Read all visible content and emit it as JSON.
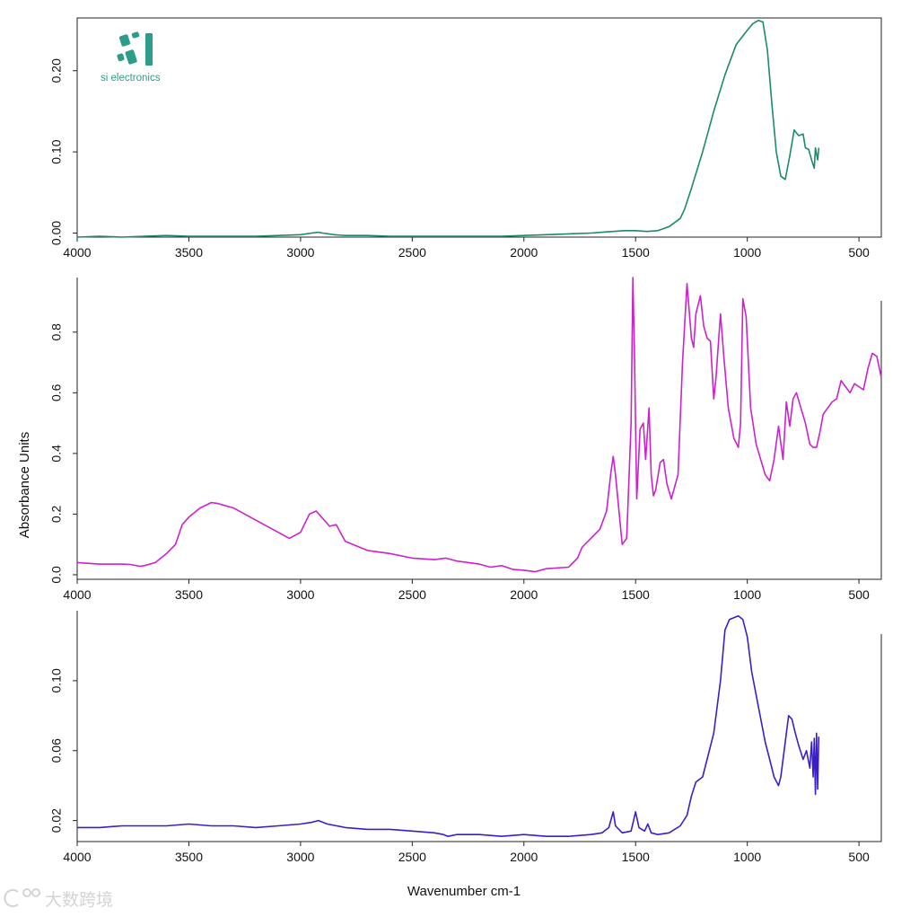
{
  "brand": {
    "name": "si electronics",
    "color": "#2e9c8a"
  },
  "watermark": {
    "text": "大数跨境"
  },
  "axis_titles": {
    "y": "Absorbance Units",
    "x": "Wavenumber cm-1"
  },
  "chart_data": [
    {
      "type": "line",
      "name": "spectrum-1",
      "color": "#1a8a6e",
      "xlim": [
        4000,
        400
      ],
      "ylim": [
        -0.005,
        0.265
      ],
      "xticks": [
        4000,
        3500,
        3000,
        2500,
        2000,
        1500,
        1000,
        500
      ],
      "yticks": [
        0.0,
        0.1,
        0.2
      ],
      "ytick_labels": [
        "0.00",
        "0.10",
        "0.20"
      ],
      "x": [
        4000,
        3900,
        3800,
        3700,
        3600,
        3500,
        3400,
        3300,
        3200,
        3100,
        3000,
        2950,
        2920,
        2900,
        2850,
        2800,
        2700,
        2600,
        2500,
        2400,
        2350,
        2300,
        2200,
        2100,
        2000,
        1900,
        1800,
        1700,
        1650,
        1600,
        1550,
        1500,
        1450,
        1400,
        1350,
        1300,
        1280,
        1250,
        1200,
        1150,
        1100,
        1050,
        1000,
        975,
        950,
        930,
        910,
        890,
        870,
        850,
        830,
        810,
        790,
        770,
        750,
        740,
        725,
        712,
        700,
        695,
        685,
        680
      ],
      "y": [
        -0.005,
        -0.004,
        -0.005,
        -0.004,
        -0.003,
        -0.004,
        -0.004,
        -0.004,
        -0.004,
        -0.003,
        -0.002,
        0.0,
        0.001,
        0.0,
        -0.002,
        -0.003,
        -0.003,
        -0.004,
        -0.004,
        -0.004,
        -0.004,
        -0.004,
        -0.004,
        -0.004,
        -0.003,
        -0.002,
        -0.001,
        0.0,
        0.001,
        0.002,
        0.003,
        0.003,
        0.002,
        0.003,
        0.008,
        0.018,
        0.03,
        0.055,
        0.1,
        0.15,
        0.195,
        0.232,
        0.25,
        0.258,
        0.262,
        0.26,
        0.225,
        0.16,
        0.1,
        0.07,
        0.066,
        0.095,
        0.127,
        0.12,
        0.122,
        0.105,
        0.103,
        0.09,
        0.08,
        0.105,
        0.09,
        0.105
      ]
    },
    {
      "type": "line",
      "name": "spectrum-2",
      "color": "#cc22cc",
      "xlim": [
        4000,
        400
      ],
      "ylim": [
        -0.015,
        0.98
      ],
      "xticks": [
        4000,
        3500,
        3000,
        2500,
        2000,
        1500,
        1000,
        500
      ],
      "yticks": [
        0.0,
        0.2,
        0.4,
        0.6,
        0.8
      ],
      "ytick_labels": [
        "0.0",
        "0.2",
        "0.4",
        "0.6",
        "0.8"
      ],
      "x": [
        4000,
        3900,
        3800,
        3760,
        3720,
        3700,
        3650,
        3600,
        3560,
        3530,
        3500,
        3450,
        3400,
        3370,
        3300,
        3200,
        3100,
        3050,
        3000,
        2960,
        2930,
        2900,
        2870,
        2840,
        2800,
        2700,
        2600,
        2500,
        2400,
        2350,
        2300,
        2200,
        2150,
        2100,
        2050,
        2000,
        1950,
        1900,
        1800,
        1760,
        1740,
        1700,
        1660,
        1630,
        1610,
        1600,
        1590,
        1560,
        1540,
        1520,
        1512,
        1505,
        1495,
        1480,
        1465,
        1455,
        1440,
        1430,
        1420,
        1410,
        1390,
        1375,
        1360,
        1340,
        1310,
        1290,
        1270,
        1250,
        1240,
        1230,
        1210,
        1195,
        1180,
        1165,
        1150,
        1140,
        1120,
        1105,
        1085,
        1060,
        1040,
        1030,
        1020,
        1005,
        985,
        960,
        920,
        900,
        880,
        860,
        840,
        825,
        810,
        795,
        780,
        760,
        740,
        720,
        705,
        690,
        675,
        660,
        640,
        620,
        600,
        580,
        560,
        540,
        520,
        500,
        480,
        460,
        440,
        420,
        400
      ],
      "y": [
        0.04,
        0.035,
        0.035,
        0.034,
        0.028,
        0.03,
        0.04,
        0.07,
        0.1,
        0.165,
        0.19,
        0.22,
        0.238,
        0.235,
        0.22,
        0.18,
        0.14,
        0.12,
        0.14,
        0.2,
        0.21,
        0.185,
        0.16,
        0.165,
        0.11,
        0.08,
        0.07,
        0.055,
        0.05,
        0.055,
        0.045,
        0.035,
        0.025,
        0.03,
        0.018,
        0.015,
        0.01,
        0.02,
        0.025,
        0.055,
        0.09,
        0.12,
        0.15,
        0.21,
        0.34,
        0.39,
        0.33,
        0.1,
        0.12,
        0.5,
        0.98,
        0.72,
        0.25,
        0.48,
        0.5,
        0.38,
        0.55,
        0.33,
        0.26,
        0.28,
        0.37,
        0.38,
        0.3,
        0.25,
        0.33,
        0.7,
        0.96,
        0.78,
        0.75,
        0.86,
        0.92,
        0.82,
        0.78,
        0.77,
        0.58,
        0.65,
        0.86,
        0.72,
        0.55,
        0.45,
        0.42,
        0.5,
        0.91,
        0.85,
        0.55,
        0.43,
        0.33,
        0.31,
        0.38,
        0.49,
        0.38,
        0.57,
        0.49,
        0.58,
        0.6,
        0.55,
        0.5,
        0.43,
        0.42,
        0.42,
        0.47,
        0.53,
        0.55,
        0.57,
        0.58,
        0.64,
        0.62,
        0.6,
        0.63,
        0.62,
        0.61,
        0.68,
        0.73,
        0.72,
        0.65
      ]
    },
    {
      "type": "line",
      "name": "spectrum-3",
      "color": "#3a1fc8",
      "xlim": [
        4000,
        400
      ],
      "ylim": [
        0.008,
        0.14
      ],
      "xticks": [
        4000,
        3500,
        3000,
        2500,
        2000,
        1500,
        1000,
        500
      ],
      "yticks": [
        0.02,
        0.06,
        0.1
      ],
      "ytick_labels": [
        "0.02",
        "0.06",
        "0.10"
      ],
      "x": [
        4000,
        3900,
        3800,
        3700,
        3600,
        3500,
        3400,
        3300,
        3200,
        3100,
        3000,
        2950,
        2920,
        2880,
        2800,
        2700,
        2600,
        2500,
        2400,
        2360,
        2340,
        2300,
        2200,
        2100,
        2000,
        1900,
        1800,
        1700,
        1650,
        1620,
        1600,
        1590,
        1560,
        1520,
        1500,
        1485,
        1460,
        1445,
        1430,
        1400,
        1350,
        1300,
        1270,
        1250,
        1230,
        1200,
        1180,
        1150,
        1120,
        1100,
        1080,
        1060,
        1040,
        1020,
        1000,
        980,
        950,
        920,
        900,
        880,
        860,
        850,
        830,
        815,
        800,
        785,
        770,
        750,
        735,
        720,
        712,
        705,
        700,
        695,
        690,
        685,
        680
      ],
      "y": [
        0.016,
        0.016,
        0.017,
        0.017,
        0.017,
        0.018,
        0.017,
        0.017,
        0.016,
        0.017,
        0.018,
        0.019,
        0.02,
        0.018,
        0.016,
        0.015,
        0.015,
        0.014,
        0.013,
        0.012,
        0.011,
        0.012,
        0.012,
        0.011,
        0.012,
        0.011,
        0.011,
        0.012,
        0.013,
        0.016,
        0.025,
        0.017,
        0.013,
        0.014,
        0.025,
        0.016,
        0.014,
        0.018,
        0.013,
        0.012,
        0.013,
        0.017,
        0.023,
        0.034,
        0.042,
        0.045,
        0.055,
        0.07,
        0.1,
        0.129,
        0.135,
        0.136,
        0.137,
        0.135,
        0.125,
        0.105,
        0.085,
        0.065,
        0.055,
        0.045,
        0.04,
        0.045,
        0.065,
        0.08,
        0.078,
        0.07,
        0.063,
        0.055,
        0.06,
        0.05,
        0.065,
        0.045,
        0.067,
        0.035,
        0.07,
        0.038,
        0.068
      ]
    }
  ]
}
